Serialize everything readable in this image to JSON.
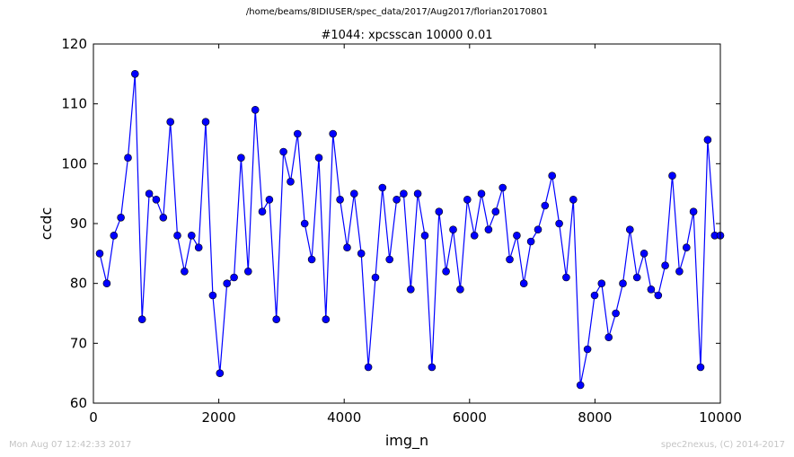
{
  "header": {
    "file_path": "/home/beams/8IDIUSER/spec_data/2017/Aug2017/florian20170801"
  },
  "footer": {
    "timestamp": "Mon Aug 07 12:42:33 2017",
    "credit": "spec2nexus, (C) 2014-2017"
  },
  "chart_data": {
    "type": "line",
    "title": "#1044: xpcsscan 10000 0.01",
    "xlabel": "img_n",
    "ylabel": "ccdc",
    "xlim": [
      0,
      10000
    ],
    "ylim": [
      60,
      120
    ],
    "xticks": [
      0,
      2000,
      4000,
      6000,
      8000,
      10000
    ],
    "yticks": [
      60,
      70,
      80,
      90,
      100,
      110,
      120
    ],
    "grid": false,
    "marker": "circle",
    "line_color": "#0000ff",
    "series": [
      {
        "x": [
          100,
          213,
          326,
          438,
          551,
          664,
          777,
          889,
          1002,
          1115,
          1228,
          1340,
          1453,
          1566,
          1679,
          1791,
          1904,
          2017,
          2130,
          2243,
          2355,
          2468,
          2581,
          2694,
          2806,
          2919,
          3032,
          3145,
          3257,
          3370,
          3483,
          3596,
          3708,
          3821,
          3934,
          4047,
          4159,
          4272,
          4385,
          4498,
          4611,
          4723,
          4836,
          4949,
          5062,
          5174,
          5287,
          5400,
          5513,
          5625,
          5738,
          5851,
          5964,
          6077,
          6189,
          6302,
          6415,
          6528,
          6640,
          6753,
          6866,
          6979,
          7091,
          7204,
          7317,
          7430,
          7542,
          7655,
          7768,
          7881,
          7994,
          8106,
          8219,
          8332,
          8445,
          8557,
          8670,
          8783,
          8896,
          9009,
          9121,
          9234,
          9347,
          9460,
          9572,
          9685,
          9798,
          9911,
          10000
        ],
        "y": [
          85,
          80,
          88,
          91,
          101,
          115,
          74,
          95,
          94,
          91,
          107,
          88,
          82,
          88,
          86,
          107,
          78,
          65,
          80,
          81,
          101,
          82,
          109,
          92,
          94,
          74,
          102,
          97,
          105,
          90,
          84,
          101,
          74,
          105,
          94,
          86,
          95,
          85,
          66,
          81,
          96,
          84,
          94,
          95,
          79,
          95,
          88,
          66,
          92,
          82,
          89,
          79,
          94,
          88,
          95,
          89,
          92,
          96,
          84,
          88,
          80,
          87,
          89,
          93,
          98,
          90,
          81,
          94,
          63,
          69,
          78,
          80,
          71,
          75,
          80,
          89,
          81,
          85,
          79,
          78,
          83,
          98,
          82,
          86,
          92,
          66,
          104,
          88,
          88
        ]
      }
    ]
  }
}
